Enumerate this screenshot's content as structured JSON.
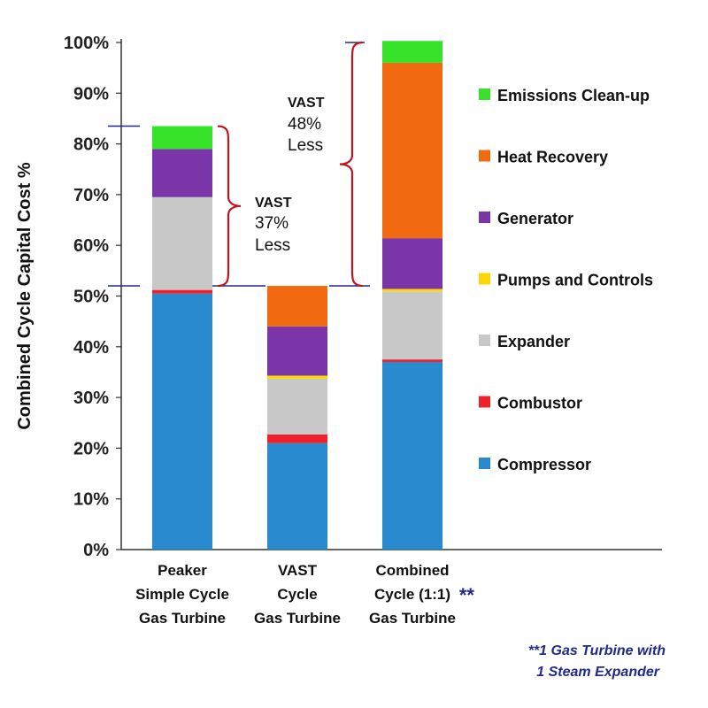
{
  "chart_data": {
    "type": "bar",
    "stacked": true,
    "ylabel": "Combined Cycle Capital Cost %",
    "ylim": [
      0,
      100
    ],
    "yticks": [
      "0%",
      "10%",
      "20%",
      "30%",
      "40%",
      "50%",
      "60%",
      "70%",
      "80%",
      "90%",
      "100%"
    ],
    "grid": false,
    "legend_position": "right",
    "categories": [
      [
        "Peaker",
        "Simple Cycle",
        "Gas Turbine"
      ],
      [
        "VAST",
        "Cycle",
        "Gas Turbine"
      ],
      [
        "Combined",
        "Cycle (1:1)",
        "Gas Turbine"
      ]
    ],
    "category_suffix": [
      "",
      "",
      "**"
    ],
    "series": [
      {
        "name": "Compressor",
        "color": "#2a8ad0",
        "values": [
          50.5,
          21,
          37
        ]
      },
      {
        "name": "Combustor",
        "color": "#f0202a",
        "values": [
          0.7,
          1.7,
          0.5
        ]
      },
      {
        "name": "Expander",
        "color": "#c8c8c8",
        "values": [
          18.3,
          11,
          13.4
        ]
      },
      {
        "name": "Pumps and Controls",
        "color": "#ffd700",
        "values": [
          0,
          0.6,
          0.5
        ]
      },
      {
        "name": "Generator",
        "color": "#7a35a8",
        "values": [
          9.5,
          9.7,
          10
        ]
      },
      {
        "name": "Heat Recovery",
        "color": "#f26a10",
        "values": [
          0,
          8,
          34.6
        ]
      },
      {
        "name": "Emissions Clean-up",
        "color": "#36e22a",
        "values": [
          4.5,
          0,
          4.3
        ]
      }
    ],
    "legend_order": [
      "Emissions Clean-up",
      "Heat Recovery",
      "Generator",
      "Pumps and Controls",
      "Expander",
      "Combustor",
      "Compressor"
    ],
    "annotations": [
      {
        "lines": [
          "VAST",
          "37%",
          "Less"
        ],
        "from": 52,
        "to": 83.5
      },
      {
        "lines": [
          "VAST",
          "48%",
          "Less"
        ],
        "from": 52,
        "to": 100
      }
    ],
    "footnote": [
      "**1 Gas Turbine with",
      "1 Steam Expander"
    ]
  }
}
